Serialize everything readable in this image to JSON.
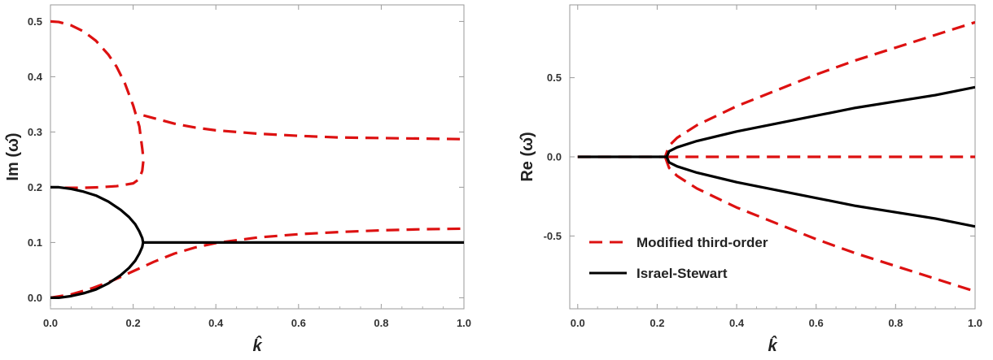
{
  "chart_data": [
    {
      "type": "line",
      "xlabel": "k̂",
      "ylabel": "Im (ω̂)",
      "xlim": [
        0,
        1.0
      ],
      "ylim": [
        -0.02,
        0.53
      ],
      "x_ticks": [
        "0.0",
        "0.2",
        "0.4",
        "0.6",
        "0.8",
        "1.0"
      ],
      "x_tick_values": [
        0,
        0.2,
        0.4,
        0.6,
        0.8,
        1.0
      ],
      "y_ticks": [
        "0.0",
        "0.1",
        "0.2",
        "0.3",
        "0.4",
        "0.5"
      ],
      "y_tick_values": [
        0,
        0.1,
        0.2,
        0.3,
        0.4,
        0.5
      ],
      "grid": false,
      "series": [
        {
          "color": "#dd1111",
          "dash": true,
          "points": [
            [
              0.0,
              0.5
            ],
            [
              0.02,
              0.499
            ],
            [
              0.05,
              0.493
            ],
            [
              0.08,
              0.482
            ],
            [
              0.11,
              0.465
            ],
            [
              0.14,
              0.44
            ],
            [
              0.16,
              0.418
            ],
            [
              0.18,
              0.388
            ],
            [
              0.2,
              0.348
            ],
            [
              0.215,
              0.31
            ],
            [
              0.222,
              0.27
            ],
            [
              0.225,
              0.25
            ],
            [
              0.222,
              0.23
            ],
            [
              0.215,
              0.215
            ],
            [
              0.2,
              0.207
            ],
            [
              0.16,
              0.202
            ],
            [
              0.12,
              0.2
            ],
            [
              0.08,
              0.199
            ],
            [
              0.03,
              0.199
            ]
          ]
        },
        {
          "color": "#dd1111",
          "dash": true,
          "points": [
            [
              0.225,
              0.33
            ],
            [
              0.25,
              0.325
            ],
            [
              0.3,
              0.315
            ],
            [
              0.35,
              0.308
            ],
            [
              0.4,
              0.303
            ],
            [
              0.5,
              0.297
            ],
            [
              0.6,
              0.293
            ],
            [
              0.7,
              0.29
            ],
            [
              0.8,
              0.289
            ],
            [
              0.9,
              0.288
            ],
            [
              1.0,
              0.287
            ]
          ]
        },
        {
          "color": "#dd1111",
          "dash": true,
          "points": [
            [
              0.0,
              0.0
            ],
            [
              0.05,
              0.006
            ],
            [
              0.1,
              0.017
            ],
            [
              0.15,
              0.031
            ],
            [
              0.2,
              0.048
            ],
            [
              0.25,
              0.065
            ],
            [
              0.3,
              0.08
            ],
            [
              0.35,
              0.091
            ],
            [
              0.4,
              0.099
            ],
            [
              0.5,
              0.109
            ],
            [
              0.6,
              0.115
            ],
            [
              0.7,
              0.119
            ],
            [
              0.8,
              0.122
            ],
            [
              0.9,
              0.124
            ],
            [
              1.0,
              0.125
            ]
          ]
        },
        {
          "color": "#000000",
          "dash": false,
          "points": [
            [
              0.0,
              0.2
            ],
            [
              0.02,
              0.2
            ],
            [
              0.05,
              0.197
            ],
            [
              0.08,
              0.192
            ],
            [
              0.11,
              0.185
            ],
            [
              0.14,
              0.174
            ],
            [
              0.17,
              0.159
            ],
            [
              0.19,
              0.146
            ],
            [
              0.205,
              0.133
            ],
            [
              0.215,
              0.12
            ],
            [
              0.222,
              0.108
            ],
            [
              0.224,
              0.1
            ],
            [
              0.222,
              0.092
            ],
            [
              0.215,
              0.08
            ],
            [
              0.205,
              0.067
            ],
            [
              0.19,
              0.054
            ],
            [
              0.17,
              0.041
            ],
            [
              0.14,
              0.026
            ],
            [
              0.11,
              0.015
            ],
            [
              0.08,
              0.008
            ],
            [
              0.05,
              0.003
            ],
            [
              0.02,
              0.0
            ],
            [
              0.0,
              0.0
            ]
          ]
        },
        {
          "color": "#000000",
          "dash": false,
          "points": [
            [
              0.224,
              0.1
            ],
            [
              1.0,
              0.1
            ]
          ]
        }
      ]
    },
    {
      "type": "line",
      "xlabel": "k̂",
      "ylabel": "Re (ω̂)",
      "xlim": [
        -0.02,
        1.0
      ],
      "ylim": [
        -0.96,
        0.96
      ],
      "x_ticks": [
        "0.0",
        "0.2",
        "0.4",
        "0.6",
        "0.8",
        "1.0"
      ],
      "x_tick_values": [
        0,
        0.2,
        0.4,
        0.6,
        0.8,
        1.0
      ],
      "y_ticks": [
        "0.5",
        "0.0",
        "-0.5"
      ],
      "y_tick_values": [
        0.5,
        0,
        -0.5
      ],
      "grid": false,
      "legend_placement": "bottom-left",
      "legend": [
        {
          "label": "Modified third-order",
          "color": "#dd1111",
          "dash": true
        },
        {
          "label": "Israel-Stewart",
          "color": "#000000",
          "dash": false
        }
      ],
      "series": [
        {
          "color": "#dd1111",
          "dash": true,
          "points": [
            [
              0.0,
              0.0
            ],
            [
              0.2,
              0.0
            ],
            [
              0.22,
              0.0
            ],
            [
              0.23,
              0.07
            ],
            [
              0.25,
              0.12
            ],
            [
              0.3,
              0.2
            ],
            [
              0.4,
              0.32
            ],
            [
              0.5,
              0.42
            ],
            [
              0.6,
              0.52
            ],
            [
              0.7,
              0.61
            ],
            [
              0.8,
              0.69
            ],
            [
              0.9,
              0.77
            ],
            [
              1.0,
              0.85
            ]
          ]
        },
        {
          "color": "#dd1111",
          "dash": true,
          "points": [
            [
              0.22,
              0.0
            ],
            [
              0.23,
              -0.07
            ],
            [
              0.25,
              -0.12
            ],
            [
              0.3,
              -0.2
            ],
            [
              0.4,
              -0.32
            ],
            [
              0.5,
              -0.42
            ],
            [
              0.6,
              -0.52
            ],
            [
              0.7,
              -0.61
            ],
            [
              0.8,
              -0.69
            ],
            [
              0.9,
              -0.77
            ],
            [
              1.0,
              -0.85
            ]
          ]
        },
        {
          "color": "#dd1111",
          "dash": true,
          "points": [
            [
              0.22,
              0.0
            ],
            [
              1.0,
              0.0
            ]
          ]
        },
        {
          "color": "#000000",
          "dash": false,
          "points": [
            [
              0.0,
              0.0
            ],
            [
              0.1,
              0.0
            ],
            [
              0.2,
              0.0
            ],
            [
              0.224,
              0.0
            ],
            [
              0.23,
              0.035
            ],
            [
              0.25,
              0.06
            ],
            [
              0.3,
              0.1
            ],
            [
              0.4,
              0.16
            ],
            [
              0.5,
              0.21
            ],
            [
              0.6,
              0.26
            ],
            [
              0.7,
              0.31
            ],
            [
              0.8,
              0.35
            ],
            [
              0.9,
              0.39
            ],
            [
              1.0,
              0.44
            ]
          ]
        },
        {
          "color": "#000000",
          "dash": false,
          "points": [
            [
              0.224,
              0.0
            ],
            [
              0.23,
              -0.035
            ],
            [
              0.25,
              -0.06
            ],
            [
              0.3,
              -0.1
            ],
            [
              0.4,
              -0.16
            ],
            [
              0.5,
              -0.21
            ],
            [
              0.6,
              -0.26
            ],
            [
              0.7,
              -0.31
            ],
            [
              0.8,
              -0.35
            ],
            [
              0.9,
              -0.39
            ],
            [
              1.0,
              -0.44
            ]
          ]
        }
      ]
    }
  ]
}
